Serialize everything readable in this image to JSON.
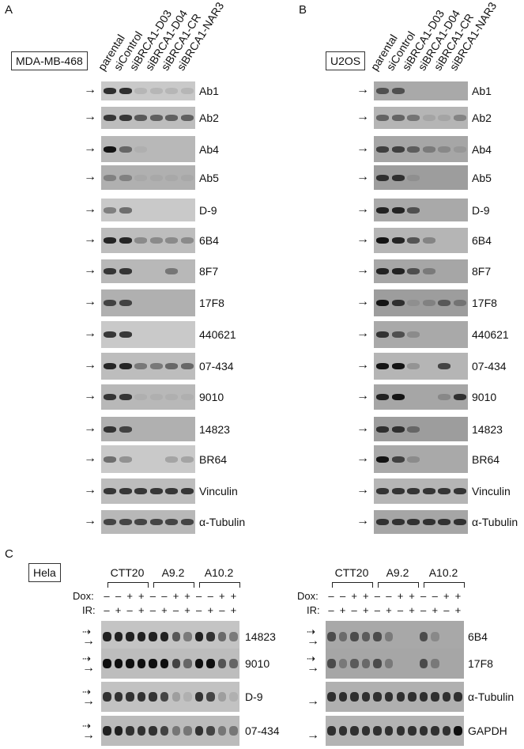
{
  "panelA": {
    "letter": "A",
    "cell_line": "MDA-MB-468",
    "lanes": [
      "parental",
      "siControl",
      "siBRCA1-D03",
      "siBRCA1-D04",
      "siBRCA1-CR",
      "siBRCA1-NAR3"
    ],
    "blots": [
      {
        "label": "Ab1",
        "band": [
          0.85,
          0.85,
          0.1,
          0.1,
          0.1,
          0.1
        ]
      },
      {
        "label": "Ab2",
        "band": [
          0.8,
          0.8,
          0.6,
          0.55,
          0.55,
          0.55
        ]
      },
      {
        "label": "Ab4",
        "band": [
          1,
          0.5,
          0.05,
          0,
          0,
          0
        ]
      },
      {
        "label": "Ab5",
        "band": [
          0.3,
          0.3,
          0.05,
          0.05,
          0.05,
          0.05
        ]
      },
      {
        "label": "D-9",
        "band": [
          0.4,
          0.5,
          0,
          0,
          0,
          0
        ]
      },
      {
        "label": "6B4",
        "band": [
          0.9,
          0.9,
          0.3,
          0.3,
          0.3,
          0.3
        ]
      },
      {
        "label": "8F7",
        "band": [
          0.8,
          0.8,
          0,
          0,
          0.4,
          0
        ]
      },
      {
        "label": "17F8",
        "band": [
          0.7,
          0.7,
          0,
          0,
          0,
          0
        ]
      },
      {
        "label": "440621",
        "band": [
          0.8,
          0.8,
          0,
          0,
          0,
          0
        ]
      },
      {
        "label": "07-434",
        "band": [
          0.9,
          0.9,
          0.4,
          0.4,
          0.5,
          0.5
        ]
      },
      {
        "label": "9010",
        "band": [
          0.8,
          0.8,
          0.05,
          0.05,
          0.05,
          0.05
        ]
      },
      {
        "label": "14823",
        "band": [
          0.8,
          0.7,
          0,
          0,
          0,
          0
        ]
      },
      {
        "label": "BR64",
        "band": [
          0.5,
          0.3,
          0,
          0,
          0.2,
          0.2
        ]
      },
      {
        "label": "Vinculin",
        "band": [
          0.8,
          0.8,
          0.8,
          0.8,
          0.8,
          0.8
        ]
      },
      {
        "label": "α-Tubulin",
        "band": [
          0.7,
          0.7,
          0.7,
          0.7,
          0.7,
          0.7
        ]
      }
    ]
  },
  "panelB": {
    "letter": "B",
    "cell_line": "U2OS",
    "lanes": [
      "parental",
      "siControl",
      "siBRCA1-D03",
      "siBRCA1-D04",
      "siBRCA1-CR",
      "siBRCA1-NAR3"
    ],
    "blots": [
      {
        "label": "Ab1",
        "band": [
          0.6,
          0.6,
          0,
          0,
          0,
          0
        ]
      },
      {
        "label": "Ab2",
        "band": [
          0.5,
          0.5,
          0.4,
          0.1,
          0.1,
          0.3
        ]
      },
      {
        "label": "Ab4",
        "band": [
          0.7,
          0.7,
          0.5,
          0.3,
          0.2,
          0.1
        ]
      },
      {
        "label": "Ab5",
        "band": [
          0.8,
          0.8,
          0.1,
          0,
          0,
          0
        ]
      },
      {
        "label": "D-9",
        "band": [
          0.9,
          0.9,
          0.6,
          0,
          0,
          0
        ]
      },
      {
        "label": "6B4",
        "band": [
          1,
          0.9,
          0.6,
          0.3,
          0,
          0
        ]
      },
      {
        "label": "8F7",
        "band": [
          0.9,
          0.9,
          0.6,
          0.3,
          0,
          0
        ]
      },
      {
        "label": "17F8",
        "band": [
          1,
          0.8,
          0.1,
          0.2,
          0.5,
          0.3
        ]
      },
      {
        "label": "440621",
        "band": [
          0.8,
          0.6,
          0.2,
          0,
          0,
          0
        ]
      },
      {
        "label": "07-434",
        "band": [
          1,
          1,
          0.2,
          0,
          0.7,
          0
        ]
      },
      {
        "label": "9010",
        "band": [
          0.9,
          1,
          0,
          0,
          0.2,
          0.8
        ]
      },
      {
        "label": "14823",
        "band": [
          0.8,
          0.8,
          0.4,
          0,
          0,
          0
        ]
      },
      {
        "label": "BR64",
        "band": [
          1,
          0.7,
          0.2,
          0,
          0,
          0
        ]
      },
      {
        "label": "Vinculin",
        "band": [
          0.8,
          0.8,
          0.8,
          0.8,
          0.8,
          0.8
        ]
      },
      {
        "label": "α-Tubulin",
        "band": [
          0.8,
          0.8,
          0.8,
          0.8,
          0.8,
          0.8
        ]
      }
    ]
  },
  "panelC": {
    "letter": "C",
    "cell_line": "Hela",
    "groups": [
      "CTT20",
      "A9.2",
      "A10.2"
    ],
    "dox_label": "Dox:",
    "ir_label": "IR:",
    "dox": [
      "–",
      "–",
      "+",
      "+",
      "–",
      "–",
      "+",
      "+",
      "–",
      "–",
      "+",
      "+"
    ],
    "ir": [
      "–",
      "+",
      "–",
      "+",
      "–",
      "+",
      "–",
      "+",
      "–",
      "+",
      "–",
      "+"
    ],
    "left": [
      {
        "label": "14823",
        "band": [
          0.9,
          0.9,
          0.9,
          0.9,
          0.9,
          0.9,
          0.6,
          0.4,
          0.9,
          0.8,
          0.5,
          0.4
        ]
      },
      {
        "label": "9010",
        "band": [
          1,
          1,
          1,
          1,
          1,
          1,
          0.7,
          0.5,
          1,
          1,
          0.6,
          0.5
        ]
      },
      {
        "label": "D-9",
        "band": [
          0.8,
          0.8,
          0.8,
          0.8,
          0.8,
          0.7,
          0.2,
          0.1,
          0.8,
          0.7,
          0.2,
          0.1
        ]
      },
      {
        "label": "07-434",
        "band": [
          0.9,
          0.9,
          0.8,
          0.8,
          0.8,
          0.7,
          0.4,
          0.4,
          0.8,
          0.7,
          0.4,
          0.4
        ]
      }
    ],
    "right": [
      {
        "label": "6B4",
        "band": [
          0.6,
          0.4,
          0.6,
          0.5,
          0.6,
          0.3,
          0,
          0,
          0.6,
          0.2,
          0,
          0
        ]
      },
      {
        "label": "17F8",
        "band": [
          0.6,
          0.3,
          0.5,
          0.4,
          0.6,
          0.3,
          0,
          0,
          0.6,
          0.3,
          0,
          0
        ]
      },
      {
        "label": "α-Tubulin",
        "band": [
          0.8,
          0.8,
          0.8,
          0.8,
          0.8,
          0.8,
          0.8,
          0.8,
          0.8,
          0.8,
          0.8,
          0.8
        ]
      },
      {
        "label": "GAPDH",
        "band": [
          0.8,
          0.8,
          0.8,
          0.8,
          0.8,
          0.8,
          0.8,
          0.8,
          0.8,
          0.8,
          0.8,
          1
        ]
      }
    ]
  }
}
